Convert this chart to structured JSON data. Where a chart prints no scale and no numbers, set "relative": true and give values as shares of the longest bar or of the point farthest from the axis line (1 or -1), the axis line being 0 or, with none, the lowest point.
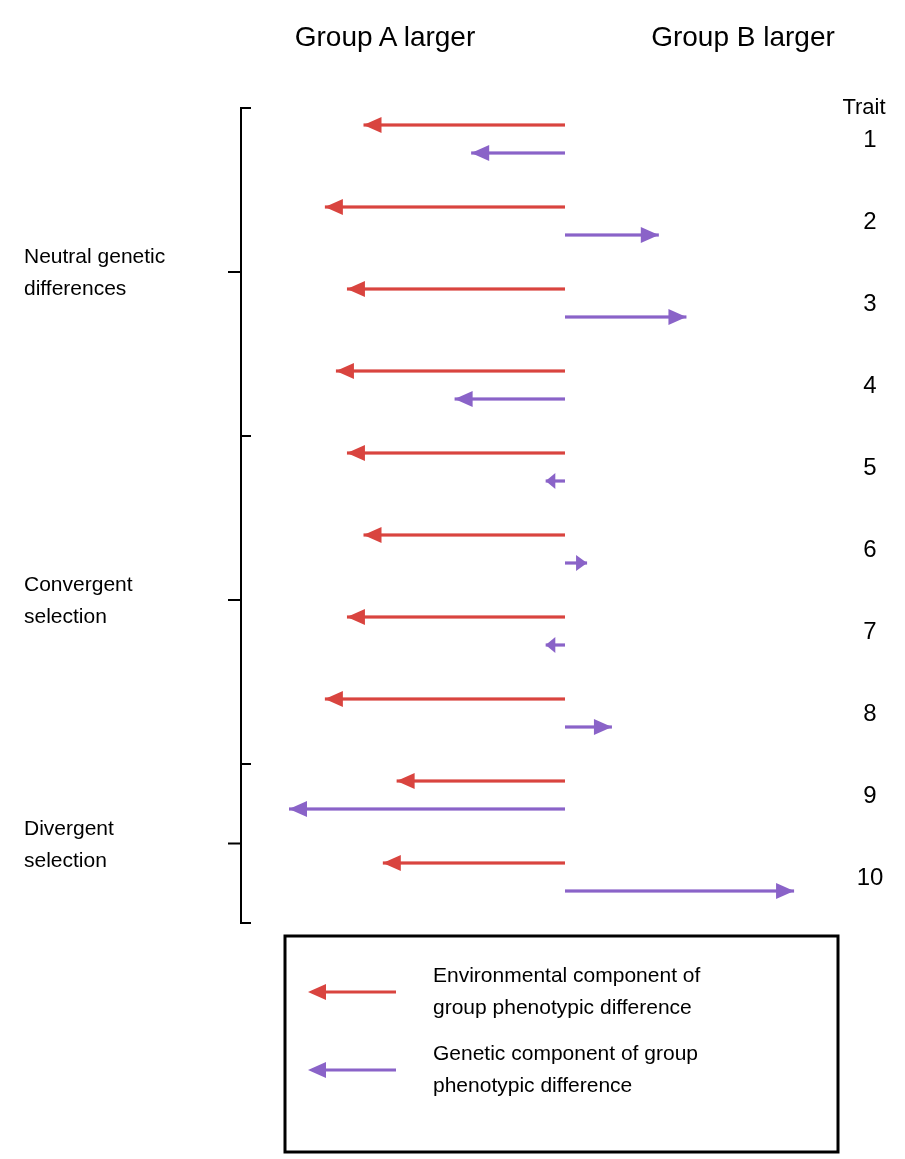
{
  "chart_data": {
    "type": "bar",
    "orientation": "horizontal",
    "relative": true,
    "ylabel": "Trait",
    "categories": [
      "1",
      "2",
      "3",
      "4",
      "5",
      "6",
      "7",
      "8",
      "9",
      "10"
    ],
    "series": [
      {
        "name": "Environmental component of group phenotypic difference",
        "color": "#d9443f",
        "values": [
          -0.73,
          -0.87,
          -0.79,
          -0.83,
          -0.79,
          -0.73,
          -0.79,
          -0.87,
          -0.61,
          -0.66
        ]
      },
      {
        "name": "Genetic component of group phenotypic difference",
        "color": "#8a63c8",
        "values": [
          -0.34,
          0.34,
          0.44,
          -0.4,
          -0.07,
          0.08,
          -0.07,
          0.17,
          -1,
          0.83
        ]
      }
    ],
    "annotations": [
      "Group A larger",
      "Group B larger",
      "Neutral genetic differences",
      "Convergent selection",
      "Divergent selection"
    ],
    "legend": "bottom"
  }
}
